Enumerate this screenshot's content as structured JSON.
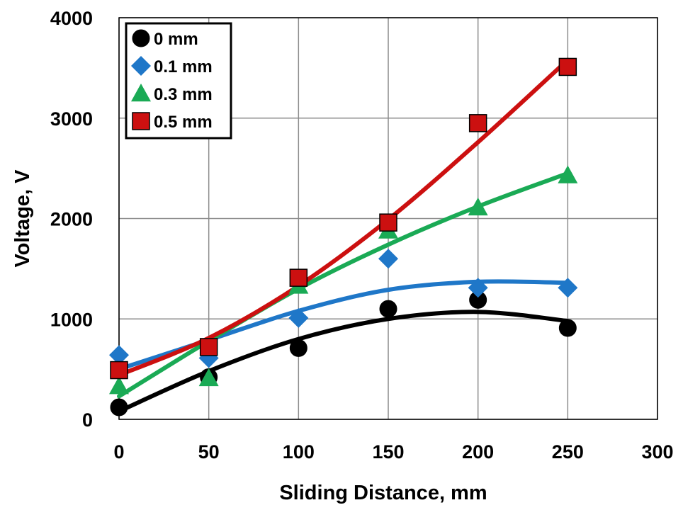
{
  "chart_data": {
    "type": "scatter",
    "xlabel": "Sliding Distance, mm",
    "ylabel": "Voltage, V",
    "xlim": [
      0,
      300
    ],
    "ylim": [
      0,
      4000
    ],
    "x_ticks": [
      0,
      50,
      100,
      150,
      200,
      250,
      300
    ],
    "y_ticks": [
      0,
      1000,
      2000,
      3000,
      4000
    ],
    "x_tick_labels": [
      "0",
      "50",
      "100",
      "150",
      "200",
      "250",
      "300"
    ],
    "y_tick_labels": [
      "0",
      "1000",
      "2000",
      "3000",
      "4000"
    ],
    "grid": true,
    "legend_position": "top-left",
    "series": [
      {
        "name": "0 mm",
        "marker": "circle",
        "color": "#000000",
        "x": [
          0,
          50,
          100,
          150,
          200,
          250
        ],
        "y": [
          120,
          420,
          710,
          1100,
          1190,
          910
        ],
        "trend_y": [
          80,
          480,
          800,
          1000,
          1070,
          980
        ]
      },
      {
        "name": "0.1 mm",
        "marker": "diamond",
        "color": "#1f77c8",
        "x": [
          0,
          50,
          100,
          150,
          200,
          250
        ],
        "y": [
          640,
          610,
          1010,
          1600,
          1310,
          1310
        ],
        "trend_y": [
          500,
          790,
          1080,
          1290,
          1370,
          1360
        ]
      },
      {
        "name": "0.3 mm",
        "marker": "triangle",
        "color": "#1aaa55",
        "x": [
          0,
          50,
          100,
          150,
          200,
          250
        ],
        "y": [
          330,
          410,
          1330,
          1880,
          2110,
          2430
        ],
        "trend_y": [
          230,
          780,
          1300,
          1740,
          2120,
          2450
        ]
      },
      {
        "name": "0.5 mm",
        "marker": "square",
        "color": "#cc1010",
        "x": [
          0,
          50,
          100,
          150,
          200,
          250
        ],
        "y": [
          490,
          720,
          1410,
          1960,
          2950,
          3510
        ],
        "trend_y": [
          440,
          810,
          1330,
          1990,
          2760,
          3580
        ]
      }
    ]
  }
}
